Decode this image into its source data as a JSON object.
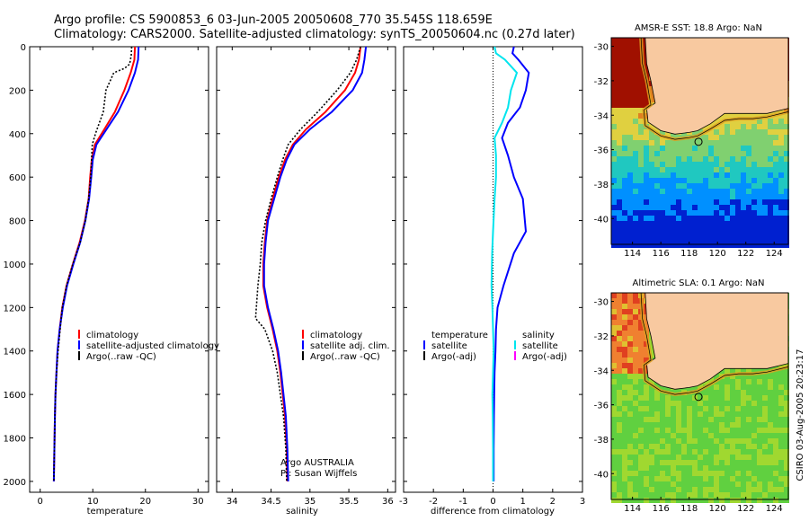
{
  "header": {
    "line1": "Argo profile: CS 5900853_6 03-Jun-2005 20050608_770 35.545S 118.659E",
    "line2": "Climatology: CARS2000. Satellite-adjusted climatology: synTS_20050604.nc (0.27d later)"
  },
  "credit": {
    "text": "CSIRO 03-Aug-2005 20:23:17"
  },
  "colors": {
    "climatology": "#ff0000",
    "satellite": "#0000ff",
    "argo": "#000000",
    "salinity_clim": "#00e5ee",
    "argo_adj_sal": "#ff00ff",
    "land": "#f8c9a0"
  },
  "chart_data": [
    {
      "type": "line",
      "id": "temperature",
      "xlabel": "temperature",
      "ylabel": "",
      "xlim": [
        -2,
        32
      ],
      "ylim": [
        0,
        2050
      ],
      "y_reversed": true,
      "xticks": [
        0,
        10,
        20,
        30
      ],
      "yticks": [
        0,
        200,
        400,
        600,
        800,
        1000,
        1200,
        1400,
        1600,
        1800,
        2000
      ],
      "legend": [
        "climatology",
        "satellite-adjusted climatology",
        "Argo(..raw -QC)"
      ],
      "series": [
        {
          "name": "climatology",
          "color": "#ff0000",
          "x": [
            18.0,
            17.9,
            17.2,
            16.0,
            14.2,
            12.2,
            10.4,
            9.8,
            9.5,
            9.2,
            8.5,
            7.5,
            6.2,
            5.0,
            4.2,
            3.7,
            3.3,
            3.1,
            2.9,
            2.8,
            2.7,
            2.6
          ],
          "y": [
            0,
            60,
            120,
            200,
            300,
            380,
            450,
            520,
            600,
            700,
            800,
            900,
            1000,
            1100,
            1200,
            1300,
            1400,
            1500,
            1600,
            1700,
            1850,
            2000
          ]
        },
        {
          "name": "satellite-adjusted climatology",
          "color": "#0000ff",
          "x": [
            18.7,
            18.6,
            18.0,
            16.8,
            14.8,
            12.6,
            10.7,
            10.0,
            9.7,
            9.3,
            8.6,
            7.6,
            6.3,
            5.1,
            4.3,
            3.7,
            3.3,
            3.1,
            2.9,
            2.8,
            2.7,
            2.6
          ],
          "y": [
            0,
            60,
            120,
            200,
            300,
            380,
            450,
            520,
            600,
            700,
            800,
            900,
            1000,
            1100,
            1200,
            1300,
            1400,
            1500,
            1600,
            1700,
            1850,
            2000
          ]
        },
        {
          "name": "Argo(..raw -QC)",
          "color": "#000000",
          "x": [
            17.4,
            17.3,
            17.0,
            16.0,
            14.0,
            12.5,
            12.0,
            10.5,
            9.9,
            9.6,
            9.2,
            8.6,
            7.6,
            6.2,
            5.0,
            4.2,
            3.8,
            3.4,
            3.1,
            2.9,
            2.8,
            2.7,
            2.6
          ],
          "y": [
            0,
            40,
            80,
            100,
            120,
            200,
            300,
            400,
            450,
            600,
            700,
            800,
            900,
            1000,
            1100,
            1200,
            1300,
            1400,
            1500,
            1600,
            1700,
            1850,
            2000
          ]
        }
      ]
    },
    {
      "type": "line",
      "id": "salinity",
      "xlabel": "salinity",
      "ylabel": "",
      "xlim": [
        33.8,
        36.1
      ],
      "ylim": [
        0,
        2050
      ],
      "y_reversed": true,
      "xticks": [
        34,
        34.5,
        35,
        35.5,
        36
      ],
      "legend": [
        "climatology",
        "satellite adj. clim.",
        "Argo(..raw -QC)"
      ],
      "annotation": [
        "Argo AUSTRALIA",
        "PI: Susan Wijffels"
      ],
      "series": [
        {
          "name": "climatology",
          "color": "#ff0000",
          "x": [
            35.65,
            35.63,
            35.58,
            35.45,
            35.2,
            34.95,
            34.78,
            34.68,
            34.6,
            34.52,
            34.45,
            34.42,
            34.4,
            34.4,
            34.45,
            34.52,
            34.58,
            34.62,
            34.65,
            34.68,
            34.7,
            34.71
          ],
          "y": [
            0,
            60,
            120,
            200,
            300,
            380,
            450,
            520,
            600,
            700,
            800,
            900,
            1000,
            1100,
            1200,
            1300,
            1400,
            1500,
            1600,
            1700,
            1850,
            2000
          ]
        },
        {
          "name": "satellite adj. clim.",
          "color": "#0000ff",
          "x": [
            35.72,
            35.7,
            35.67,
            35.55,
            35.28,
            35.0,
            34.8,
            34.7,
            34.62,
            34.54,
            34.46,
            34.43,
            34.41,
            34.41,
            34.46,
            34.53,
            34.59,
            34.63,
            34.66,
            34.69,
            34.71,
            34.72
          ],
          "y": [
            0,
            60,
            120,
            200,
            300,
            380,
            450,
            520,
            600,
            700,
            800,
            900,
            1000,
            1100,
            1200,
            1300,
            1400,
            1500,
            1600,
            1700,
            1850,
            2000
          ]
        },
        {
          "name": "Argo(..raw -QC)",
          "color": "#000000",
          "x": [
            35.65,
            35.6,
            35.52,
            35.35,
            35.1,
            34.88,
            34.72,
            34.65,
            34.58,
            34.5,
            34.43,
            34.38,
            34.36,
            34.33,
            34.3,
            34.42,
            34.52,
            34.58,
            34.62,
            34.66,
            34.69,
            34.7
          ],
          "y": [
            0,
            60,
            120,
            200,
            300,
            380,
            450,
            520,
            600,
            700,
            800,
            900,
            1000,
            1100,
            1250,
            1300,
            1400,
            1500,
            1600,
            1700,
            1850,
            2000
          ]
        }
      ]
    },
    {
      "type": "line",
      "id": "difference",
      "xlabel": "difference from climatology",
      "ylabel": "",
      "xlim": [
        -3,
        3
      ],
      "ylim": [
        0,
        2050
      ],
      "y_reversed": true,
      "xticks": [
        -3,
        -2,
        -1,
        0,
        1,
        2,
        3
      ],
      "legend_left": [
        "temperature",
        "satellite",
        "Argo(-adj)"
      ],
      "legend_right": [
        "salinity",
        "satellite",
        "Argo(-adj)"
      ],
      "series": [
        {
          "name": "satellite (temperature)",
          "color": "#0000ff",
          "x": [
            0.7,
            0.65,
            0.85,
            1.2,
            1.1,
            0.9,
            0.5,
            0.3,
            0.5,
            0.7,
            1.0,
            1.1,
            0.7,
            0.35,
            0.15,
            0.1,
            0.08,
            0.05,
            0.04,
            0.03,
            0.02,
            0.02
          ],
          "y": [
            0,
            30,
            60,
            120,
            200,
            280,
            350,
            420,
            500,
            600,
            700,
            850,
            950,
            1100,
            1200,
            1300,
            1400,
            1500,
            1600,
            1700,
            1850,
            2000
          ]
        },
        {
          "name": "satellite (salinity)",
          "color": "#00e5ee",
          "x": [
            0.05,
            0.1,
            0.4,
            0.8,
            0.6,
            0.5,
            0.3,
            0.05,
            0.1,
            0.1,
            0.05,
            0.0,
            -0.03,
            -0.05,
            -0.02,
            0.0,
            0.02,
            0.0,
            -0.02,
            -0.01,
            0.0,
            0.0
          ],
          "y": [
            0,
            30,
            60,
            120,
            200,
            280,
            350,
            420,
            500,
            600,
            700,
            850,
            950,
            1100,
            1200,
            1300,
            1400,
            1500,
            1600,
            1700,
            1850,
            2000
          ]
        }
      ]
    }
  ],
  "maps": [
    {
      "id": "sst",
      "title": "AMSR-E SST: 18.8 Argo: NaN",
      "xticks": [
        "114",
        "116",
        "118",
        "120",
        "122",
        "124"
      ],
      "yticks": [
        "-30",
        "-32",
        "-34",
        "-36",
        "-38",
        "-40"
      ],
      "lon_range": [
        112.5,
        125
      ],
      "lat_range": [
        -29.5,
        -41.5
      ]
    },
    {
      "id": "sla",
      "title": "Altimetric SLA: 0.1 Argo: NaN",
      "xticks": [
        "114",
        "116",
        "118",
        "120",
        "122",
        "124"
      ],
      "yticks": [
        "-30",
        "-32",
        "-34",
        "-36",
        "-38",
        "-40"
      ],
      "lon_range": [
        112.5,
        125
      ],
      "lat_range": [
        -29.5,
        -41.5
      ]
    }
  ]
}
